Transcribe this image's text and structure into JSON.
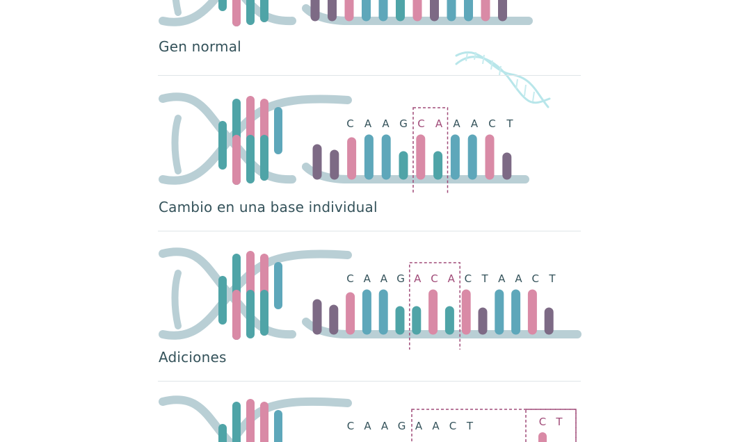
{
  "colors": {
    "backbone": "#b9cfd5",
    "teal": "#4fa4a7",
    "blue": "#5ea7ba",
    "pink": "#d98aa6",
    "purple": "#7d6a85",
    "seq_text": "#34525a",
    "highlight": "#a04b78",
    "caption": "#34525a",
    "divider": "#dfe5e8"
  },
  "rows": [
    {
      "id": "normal",
      "caption": "Gen normal",
      "sequence": [],
      "bars": [
        "purple",
        "purple",
        "pink",
        "blue",
        "blue",
        "teal",
        "pink",
        "purple",
        "blue",
        "blue",
        "pink",
        "purple"
      ],
      "highlight": []
    },
    {
      "id": "single-base",
      "caption": "Cambio en una base individual",
      "sequence": [
        "C",
        "A",
        "A",
        "G",
        "C",
        "A",
        "A",
        "A",
        "C",
        "T"
      ],
      "bars": [
        "purple",
        "purple",
        "pink",
        "blue",
        "blue",
        "teal",
        "pink",
        "teal",
        "blue",
        "blue",
        "pink",
        "purple"
      ],
      "highlight": [
        4,
        5
      ]
    },
    {
      "id": "additions",
      "caption": "Adiciones",
      "sequence": [
        "C",
        "A",
        "A",
        "G",
        "A",
        "C",
        "A",
        "C",
        "T",
        "A",
        "A",
        "C",
        "T"
      ],
      "bars": [
        "purple",
        "purple",
        "pink",
        "blue",
        "blue",
        "teal",
        "teal",
        "pink",
        "teal",
        "pink",
        "purple",
        "blue",
        "blue",
        "pink",
        "purple"
      ],
      "highlight": [
        4,
        5,
        6
      ]
    },
    {
      "id": "deletions",
      "caption": "",
      "sequence": [
        "C",
        "A",
        "A",
        "G",
        "A",
        "A",
        "C",
        "T"
      ],
      "deleted": [
        "C",
        "T"
      ],
      "bars": [],
      "highlight": []
    }
  ]
}
